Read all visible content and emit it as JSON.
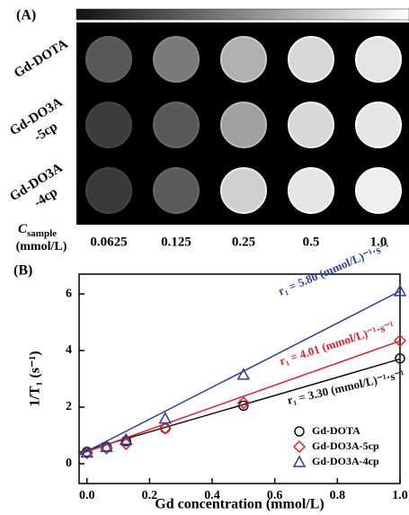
{
  "panel_a": {
    "label": "(A)",
    "rows": [
      [
        "Gd-DOTA"
      ],
      [
        "Gd-DO3A",
        "-5cp"
      ],
      [
        "Gd-DO3A",
        "-4cp"
      ]
    ],
    "concentration_label": {
      "symbol": "C",
      "subscript": "sample",
      "unit": "(mmol/L)"
    },
    "concentrations": [
      "0.0625",
      "0.125",
      "0.25",
      "0.5",
      "1.0"
    ]
  },
  "chart_data": {
    "type": "scatter",
    "panel_label": "(B)",
    "x_label": "Gd concentration (mmol/L)",
    "y_label": "1/T₁ (s⁻¹)",
    "xlim": [
      -0.025,
      1.0
    ],
    "ylim": [
      -0.7,
      6.7
    ],
    "xticks": [
      {
        "value": 0,
        "label": "0.0"
      },
      0.2,
      0.4,
      0.6,
      0.8,
      {
        "value": 1,
        "label": "1.0"
      }
    ],
    "yticks": [
      0,
      2,
      4,
      6
    ],
    "x": [
      0,
      0.0625,
      0.125,
      0.25,
      0.5,
      1.0
    ],
    "legend": "lower right",
    "series": [
      {
        "name": "Gd-DOTA",
        "color": "#111111",
        "marker": "circle",
        "values": [
          0.42,
          0.6,
          0.8,
          1.25,
          2.05,
          3.72
        ],
        "fit_values": [
          0.4,
          3.7
        ],
        "annotation": "r₁ = 3.30 (mmol/L)⁻¹·s⁻¹"
      },
      {
        "name": "Gd-DO3A-5cp",
        "color": "#e0202a",
        "marker": "diamond",
        "values": [
          0.38,
          0.55,
          0.7,
          1.25,
          2.15,
          4.35
        ],
        "fit_values": [
          0.33,
          4.34
        ],
        "annotation": "r₁ = 4.01 (mmol/L)⁻¹·s⁻¹"
      },
      {
        "name": "Gd-DO3A-4cp",
        "color": "#2b3f9e",
        "marker": "triangle",
        "values": [
          0.4,
          0.6,
          0.85,
          1.6,
          3.15,
          6.1
        ],
        "fit_values": [
          0.3,
          6.1
        ],
        "annotation": "r₁ = 5.80 (mmol/L)⁻¹·s⁻¹"
      }
    ]
  }
}
